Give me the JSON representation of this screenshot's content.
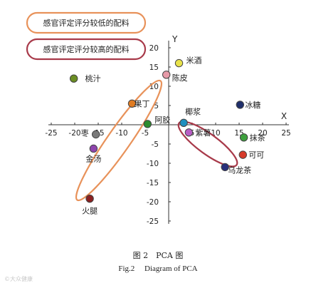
{
  "chart_data": {
    "type": "scatter",
    "x_axis_name": "X",
    "y_axis_name": "Y",
    "xlim": [
      -25,
      25
    ],
    "ylim": [
      -25,
      20
    ],
    "x_ticks": [
      -25,
      -20,
      -15,
      -10,
      -5,
      5,
      10,
      15,
      20,
      25
    ],
    "y_ticks": [
      20,
      15,
      10,
      5,
      -5,
      -10,
      -15,
      -20,
      -25
    ],
    "legend": [
      {
        "label": "感官评定评分较低的配料",
        "color": "#e8925a"
      },
      {
        "label": "感官评定评分较高的配料",
        "color": "#a83a4a"
      }
    ],
    "points": [
      {
        "label": "桃汁",
        "x": -20.2,
        "y": 12.0,
        "color": "#6b8e23"
      },
      {
        "label": "米酒",
        "x": 2.2,
        "y": 16.0,
        "color": "#e8e24a"
      },
      {
        "label": "陈皮",
        "x": -0.5,
        "y": 13.0,
        "color": "#e69aa8"
      },
      {
        "label": "果丁",
        "x": -7.8,
        "y": 5.5,
        "color": "#e07c22"
      },
      {
        "label": "阿胶",
        "x": -4.5,
        "y": 0.2,
        "color": "#2e8b2e"
      },
      {
        "label": "枣",
        "x": -15.5,
        "y": -2.5,
        "color": "#7a7a7a"
      },
      {
        "label": "金汤",
        "x": -16.0,
        "y": -6.2,
        "color": "#8e44ad"
      },
      {
        "label": "火腿",
        "x": -16.8,
        "y": -19.2,
        "color": "#8b2020"
      },
      {
        "label": "椰浆",
        "x": 3.2,
        "y": 0.5,
        "color": "#1f8fbf"
      },
      {
        "label": "紫薯",
        "x": 4.3,
        "y": -2.0,
        "color": "#b85cc4"
      },
      {
        "label": "冰糖",
        "x": 15.2,
        "y": 5.2,
        "color": "#1f2f6b"
      },
      {
        "label": "抹茶",
        "x": 16.0,
        "y": -3.3,
        "color": "#3da03d"
      },
      {
        "label": "可可",
        "x": 15.8,
        "y": -7.8,
        "color": "#d63a2a"
      },
      {
        "label": "乌龙茶",
        "x": 12.0,
        "y": -11.0,
        "color": "#2a2f7a"
      }
    ],
    "groups": [
      {
        "legend_index": 0,
        "members": [
          "陈皮",
          "果丁",
          "阿胶",
          "火腿"
        ]
      },
      {
        "legend_index": 1,
        "members": [
          "椰浆",
          "紫薯",
          "乌龙茶"
        ]
      }
    ]
  },
  "caption_cn": "图 2　PCA 图",
  "caption_en": "Fig.2　 Diagram of PCA",
  "watermark": "©大众健康"
}
